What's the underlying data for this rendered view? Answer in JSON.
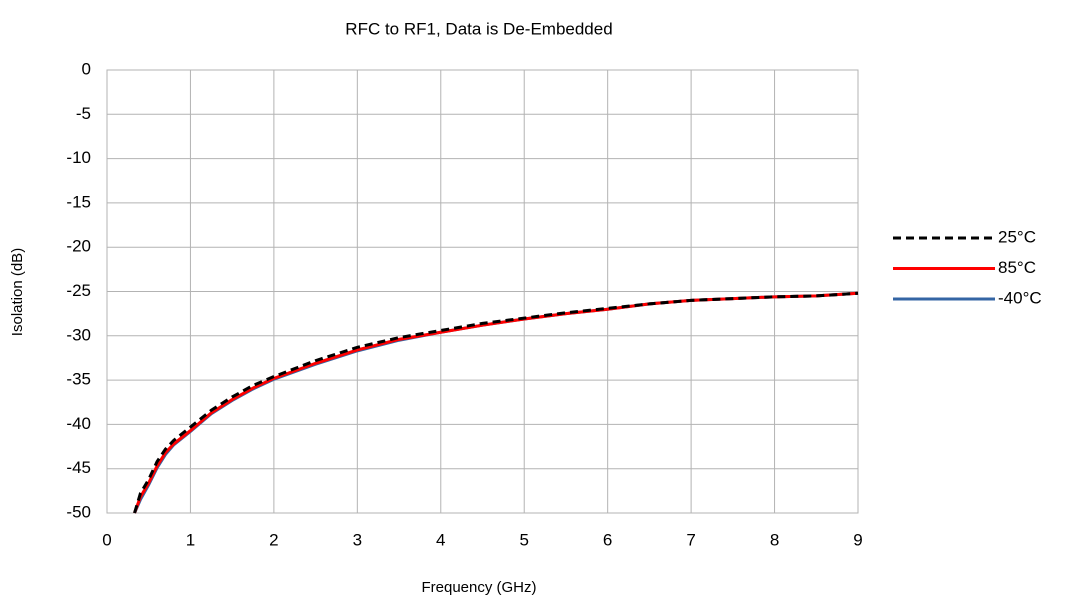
{
  "chart_data": {
    "type": "line",
    "title": "RFC to RF1, Data is De-Embedded",
    "xlabel": "Frequency (GHz)",
    "ylabel": "Isolation (dB)",
    "x": [
      0.33,
      0.4,
      0.5,
      0.6,
      0.7,
      0.8,
      1,
      1.25,
      1.5,
      1.75,
      2,
      2.5,
      3,
      3.5,
      4,
      4.5,
      5,
      5.5,
      6,
      6.5,
      7,
      7.5,
      8,
      8.5,
      9
    ],
    "series": [
      {
        "name": "25°C",
        "color": "#000000",
        "dash": true,
        "values": [
          -50,
          -47.8,
          -46.2,
          -44.2,
          -42.8,
          -41.8,
          -40.3,
          -38.4,
          -36.9,
          -35.6,
          -34.6,
          -32.8,
          -31.3,
          -30.2,
          -29.4,
          -28.6,
          -28.0,
          -27.4,
          -26.9,
          -26.4,
          -26.0,
          -25.8,
          -25.6,
          -25.5,
          -25.2
        ]
      },
      {
        "name": "85°C",
        "color": "#ff0000",
        "dash": false,
        "values": [
          -50,
          -48.2,
          -46.6,
          -44.7,
          -43.2,
          -42.2,
          -40.7,
          -38.7,
          -37.2,
          -35.9,
          -34.8,
          -33.1,
          -31.6,
          -30.4,
          -29.6,
          -28.8,
          -28.1,
          -27.5,
          -27.0,
          -26.4,
          -26.0,
          -25.8,
          -25.6,
          -25.5,
          -25.2
        ]
      },
      {
        "name": "-40°C",
        "color": "#3465a4",
        "dash": false,
        "values": [
          -50,
          -48.5,
          -46.8,
          -44.9,
          -43.4,
          -42.3,
          -40.8,
          -38.8,
          -37.3,
          -36.0,
          -34.9,
          -33.2,
          -31.7,
          -30.5,
          -29.6,
          -28.8,
          -28.1,
          -27.5,
          -27.0,
          -26.4,
          -26.0,
          -25.8,
          -25.6,
          -25.5,
          -25.2
        ]
      }
    ],
    "xlim": [
      0,
      9
    ],
    "xticks": [
      0,
      1,
      2,
      3,
      4,
      5,
      6,
      7,
      8,
      9
    ],
    "ylim": [
      -50,
      0
    ],
    "yticks": [
      0,
      -5,
      -10,
      -15,
      -20,
      -25,
      -30,
      -35,
      -40,
      -45,
      -50
    ],
    "grid": true,
    "legend": "right"
  }
}
